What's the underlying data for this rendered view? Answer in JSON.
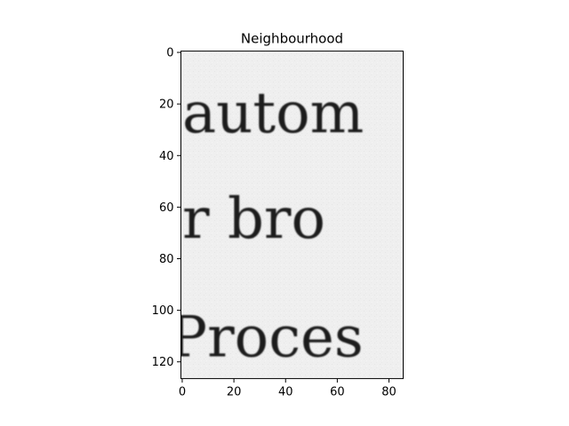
{
  "chart_data": {
    "type": "image",
    "title": "Neighbourhood",
    "xlabel": "",
    "ylabel": "",
    "image_width": 86,
    "image_height": 127,
    "xlim": [
      -0.5,
      85.5
    ],
    "ylim": [
      126.5,
      -0.5
    ],
    "x_ticks": [
      0,
      20,
      40,
      60,
      80
    ],
    "y_ticks": [
      0,
      20,
      40,
      60,
      80,
      100,
      120
    ],
    "colormap": "gray",
    "image_text_lines": [
      {
        "text": "autom",
        "y": 24
      },
      {
        "text": "r bro",
        "y": 65
      },
      {
        "text": "Proces",
        "y": 111
      }
    ],
    "grid": false,
    "legend": "none"
  },
  "colors": {
    "background": "#efefef",
    "ink": "#1a1a1a",
    "axis": "#000000"
  }
}
